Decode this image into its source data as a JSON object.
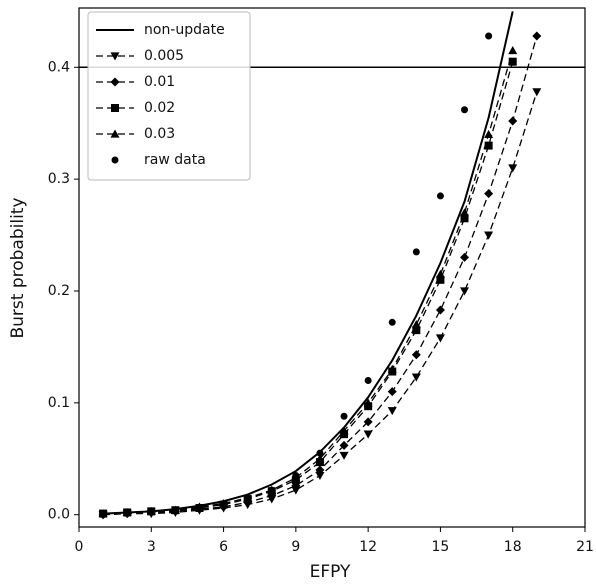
{
  "chart_data": {
    "type": "line",
    "xlabel": "EFPY",
    "ylabel": "Burst probability",
    "xlim": [
      0,
      21
    ],
    "ylim": [
      -0.011,
      0.453
    ],
    "xticks": [
      0,
      3,
      6,
      9,
      12,
      15,
      18,
      21
    ],
    "yticks": [
      {
        "value": 0,
        "label": "0.0"
      },
      0.1,
      0.2,
      0.3,
      0.4
    ],
    "threshold": 0.4,
    "legend": "upper left",
    "series": [
      {
        "name": "non-update",
        "color": "#000000",
        "line": "solid",
        "marker": "none",
        "x": [
          1,
          2,
          3,
          4,
          5,
          6,
          7,
          8,
          9,
          10,
          11,
          12,
          13,
          14,
          15,
          16,
          17,
          18
        ],
        "values": [
          0.001,
          0.002,
          0.003,
          0.005,
          0.008,
          0.012,
          0.018,
          0.027,
          0.039,
          0.056,
          0.078,
          0.105,
          0.138,
          0.178,
          0.225,
          0.28,
          0.355,
          0.45
        ]
      },
      {
        "name": "0.005",
        "color": "#000000",
        "line": "dashed",
        "marker": "v",
        "x": [
          1,
          2,
          3,
          4,
          5,
          6,
          7,
          8,
          9,
          10,
          11,
          12,
          13,
          14,
          15,
          16,
          17,
          18,
          19
        ],
        "values": [
          0,
          0.001,
          0.001,
          0.002,
          0.004,
          0.006,
          0.009,
          0.014,
          0.022,
          0.035,
          0.053,
          0.072,
          0.093,
          0.123,
          0.158,
          0.2,
          0.25,
          0.31,
          0.378
        ]
      },
      {
        "name": "0.01",
        "color": "#000000",
        "line": "dashed",
        "marker": "D",
        "x": [
          1,
          2,
          3,
          4,
          5,
          6,
          7,
          8,
          9,
          10,
          11,
          12,
          13,
          14,
          15,
          16,
          17,
          18,
          19
        ],
        "values": [
          0,
          0.001,
          0.002,
          0.003,
          0.005,
          0.007,
          0.011,
          0.017,
          0.026,
          0.04,
          0.062,
          0.083,
          0.11,
          0.143,
          0.183,
          0.23,
          0.287,
          0.352,
          0.428
        ]
      },
      {
        "name": "0.02",
        "color": "#000000",
        "line": "dashed",
        "marker": "s",
        "x": [
          1,
          2,
          3,
          4,
          5,
          6,
          7,
          8,
          9,
          10,
          11,
          12,
          13,
          14,
          15,
          16,
          17,
          18
        ],
        "values": [
          0.001,
          0.002,
          0.003,
          0.004,
          0.006,
          0.009,
          0.014,
          0.021,
          0.031,
          0.047,
          0.072,
          0.097,
          0.128,
          0.165,
          0.21,
          0.265,
          0.33,
          0.405
        ]
      },
      {
        "name": "0.03",
        "color": "#000000",
        "line": "dashed",
        "marker": "^",
        "x": [
          1,
          2,
          3,
          4,
          5,
          6,
          7,
          8,
          9,
          10,
          11,
          12,
          13,
          14,
          15,
          16,
          17,
          18
        ],
        "values": [
          0.001,
          0.002,
          0.003,
          0.004,
          0.007,
          0.01,
          0.015,
          0.022,
          0.033,
          0.05,
          0.075,
          0.1,
          0.13,
          0.17,
          0.215,
          0.27,
          0.34,
          0.415
        ]
      },
      {
        "name": "raw data",
        "color": "#000000",
        "line": "none",
        "marker": "o",
        "x": [
          1,
          2,
          3,
          4,
          5,
          6,
          7,
          8,
          9,
          10,
          11,
          12,
          13,
          14,
          15,
          16,
          17
        ],
        "values": [
          0,
          0.001,
          0.002,
          0.004,
          0.006,
          0.01,
          0.015,
          0.022,
          0.035,
          0.055,
          0.088,
          0.12,
          0.172,
          0.235,
          0.285,
          0.362,
          0.428
        ]
      }
    ]
  }
}
